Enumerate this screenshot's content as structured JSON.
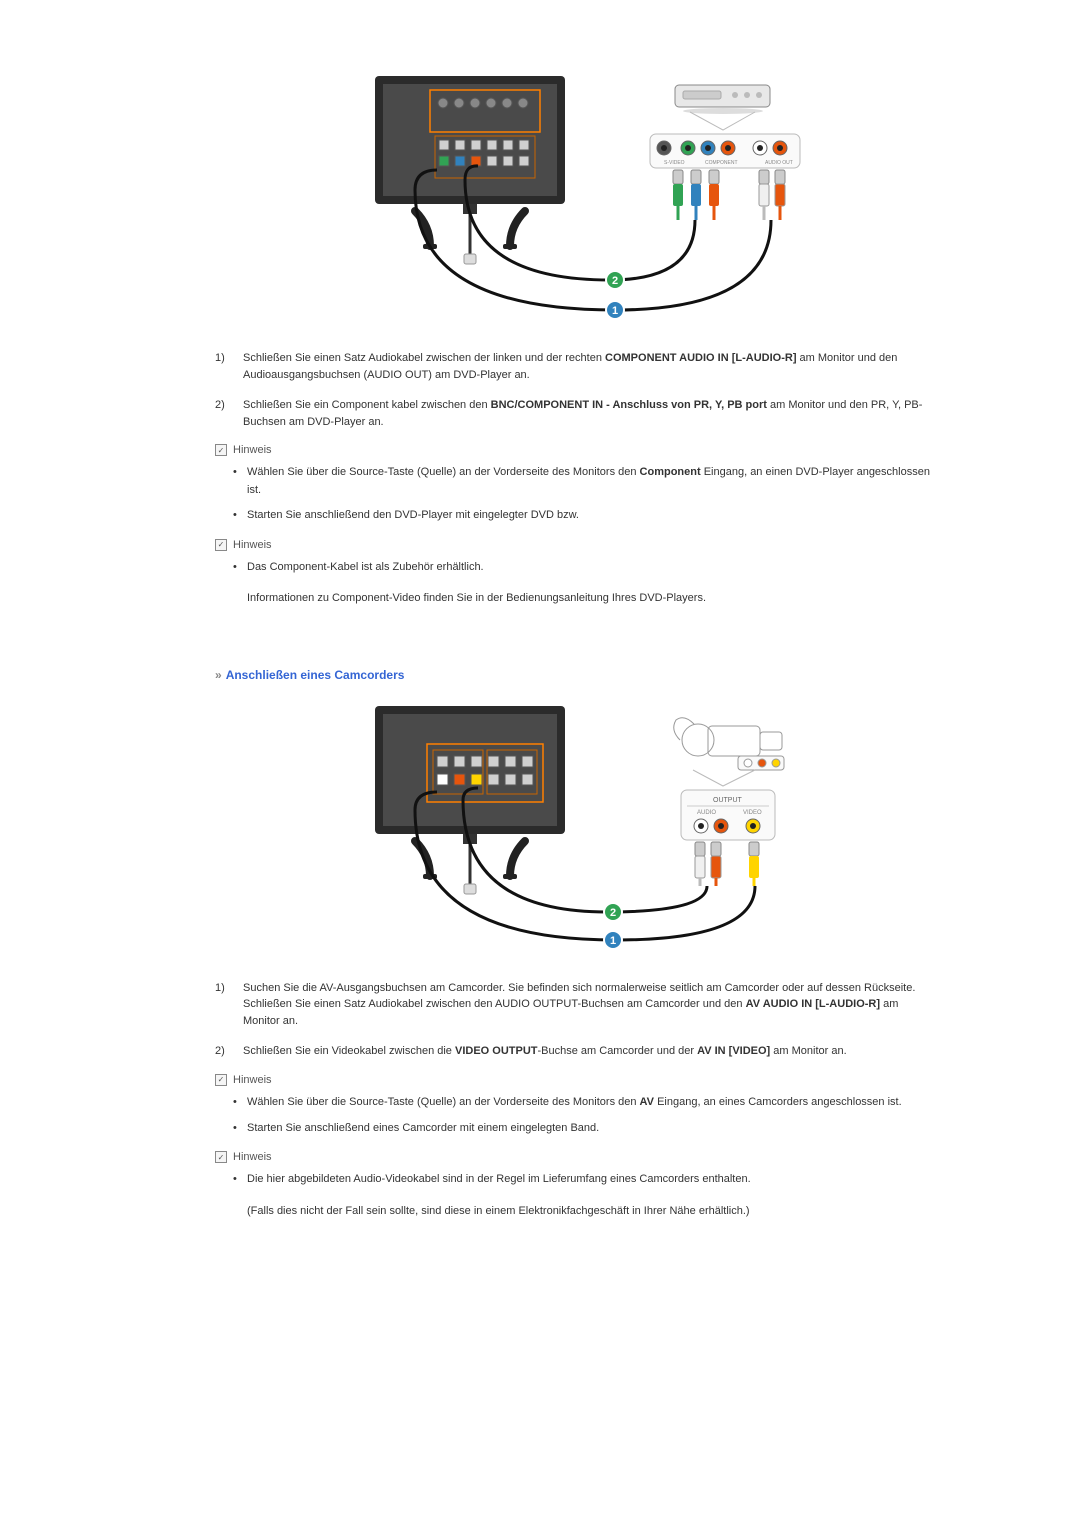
{
  "diagram1": {
    "monitor": {
      "bezel_color": "#2b2b2b",
      "panel_color": "#545454",
      "port_panel_border": "#ff7f00",
      "inner_border": "#c86400",
      "bnc_colors": [
        "#888",
        "#888",
        "#888",
        "#888",
        "#888",
        "#888"
      ],
      "rca_row1_colors": [
        "#d0d0d0",
        "#d0d0d0",
        "#d0d0d0",
        "#d0d0d0",
        "#d0d0d0",
        "#d0d0d0"
      ],
      "rca_row2_colors": [
        "#31a354",
        "#3182bd",
        "#e6550d",
        "#d0d0d0",
        "#d0d0d0",
        "#d0d0d0"
      ]
    },
    "device": {
      "body_color": "#e8e8e8",
      "outline": "#888"
    },
    "panel": {
      "bg": "#fafafa",
      "border": "#bbb",
      "label_svideo": "S-VIDEO",
      "label_component": "COMPONENT",
      "label_audio": "AUDIO OUT",
      "jacks": [
        "#555",
        "#31a354",
        "#3182bd",
        "#e6550d",
        "#fff",
        "#e6550d"
      ]
    },
    "cables": {
      "component": [
        "#31a354",
        "#3182bd",
        "#e6550d"
      ],
      "audio": [
        "#f0f0f0",
        "#e6550d"
      ],
      "black": "#111"
    },
    "markers": {
      "1": {
        "color": "#3182bd",
        "label": "1"
      },
      "2": {
        "color": "#31a354",
        "label": "2"
      }
    }
  },
  "list1": {
    "items": [
      {
        "num": "1)",
        "before": "Schließen Sie einen Satz Audiokabel zwischen der linken und der rechten ",
        "bold": "COMPONENT AUDIO IN [L-AUDIO-R]",
        "after": " am Monitor und den Audioausgangsbuchsen (AUDIO OUT) am DVD-Player an."
      },
      {
        "num": "2)",
        "before": "Schließen Sie ein Component kabel zwischen den ",
        "bold": "BNC/COMPONENT IN - Anschluss von PR, Y, PB port",
        "after": " am Monitor und den PR, Y, PB-Buchsen am DVD-Player an."
      }
    ]
  },
  "hinweis_label": "Hinweis",
  "bullets1": [
    {
      "before": "Wählen Sie über die Source-Taste (Quelle) an der Vorderseite des Monitors den ",
      "bold": "Component",
      "after": " Eingang, an einen DVD-Player angeschlossen ist."
    },
    {
      "before": "Starten Sie anschließend den DVD-Player mit eingelegter DVD bzw.",
      "bold": "",
      "after": ""
    }
  ],
  "bullets2": [
    "Das Component-Kabel ist als Zubehör erhältlich."
  ],
  "info_line": "Informationen zu Component-Video finden Sie in der Bedienungsanleitung Ihres DVD-Players.",
  "section2_title": "Anschließen eines Camcorders",
  "diagram2": {
    "monitor": {
      "bezel_color": "#2b2b2b",
      "panel_color": "#545454",
      "port_panel_border": "#ff7f00"
    },
    "camcorder": {
      "outline": "#999"
    },
    "panel": {
      "bg": "#fafafa",
      "border": "#bbb",
      "title": "OUTPUT",
      "label_audio": "AUDIO",
      "label_video": "VIDEO",
      "jacks": [
        "#fff",
        "#e6550d",
        "#ffd400"
      ]
    },
    "cables": {
      "audio": [
        "#f0f0f0",
        "#e6550d"
      ],
      "video": "#ffd400",
      "black": "#111"
    },
    "markers": {
      "1": {
        "color": "#3182bd",
        "label": "1"
      },
      "2": {
        "color": "#31a354",
        "label": "2"
      }
    }
  },
  "list2": {
    "items": [
      {
        "num": "1)",
        "lines": [
          {
            "before": "Suchen Sie die AV-Ausgangsbuchsen am Camcorder. Sie befinden sich normalerweise seitlich am Camcorder oder auf dessen Rückseite.",
            "bold": "",
            "after": ""
          },
          {
            "before": "Schließen Sie einen Satz Audiokabel zwischen den AUDIO OUTPUT-Buchsen am Camcorder und den ",
            "bold": "AV AUDIO IN [L-AUDIO-R]",
            "after": " am Monitor an."
          }
        ]
      },
      {
        "num": "2)",
        "lines": [
          {
            "before": "Schließen Sie ein Videokabel zwischen die ",
            "bold": "VIDEO OUTPUT",
            "mid": "-Buchse am Camcorder und der ",
            "bold2": "AV IN [VIDEO]",
            "after": " am Monitor an."
          }
        ]
      }
    ]
  },
  "bullets3": [
    {
      "before": "Wählen Sie über die Source-Taste (Quelle) an der Vorderseite des Monitors den ",
      "bold": "AV",
      "after": " Eingang, an eines Camcorders angeschlossen ist."
    },
    {
      "before": "Starten Sie anschließend eines Camcorder mit einem eingelegten Band.",
      "bold": "",
      "after": ""
    }
  ],
  "bullets4": [
    "Die hier abgebildeten Audio-Videokabel sind in der Regel im Lieferumfang eines Camcorders enthalten."
  ],
  "tail_line": "(Falls dies nicht der Fall sein sollte, sind diese in einem Elektronikfachgeschäft in Ihrer Nähe erhältlich.)"
}
